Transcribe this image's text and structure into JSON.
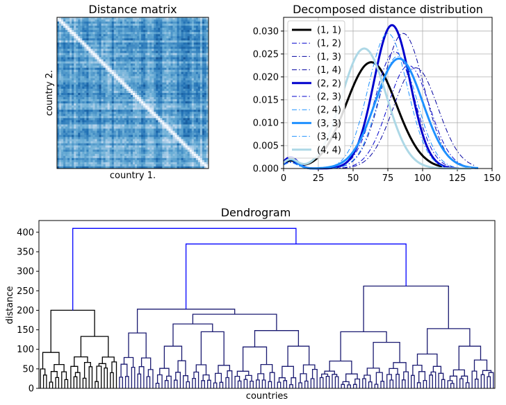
{
  "chart_data": [
    {
      "type": "heatmap",
      "title": "Distance matrix",
      "xlabel": "country 1.",
      "ylabel": "country 2.",
      "colormap": [
        "#f7fbff",
        "#c6dbef",
        "#6baed6",
        "#2171b5",
        "#08306b"
      ],
      "diagonal_color": "#f7fbff"
    },
    {
      "type": "line",
      "title": "Decomposed distance distribution",
      "xlim": [
        0,
        150
      ],
      "ylim": [
        0,
        0.033
      ],
      "xticks": [
        "0",
        "25",
        "50",
        "75",
        "100",
        "125",
        "150"
      ],
      "yticks": [
        "0.000",
        "0.005",
        "0.010",
        "0.015",
        "0.020",
        "0.025",
        "0.030"
      ],
      "grid": true,
      "legend_position": "top-left",
      "series": [
        {
          "name": "(1, 1)",
          "color": "#000000",
          "style": "solid",
          "width": 3,
          "peaks": [
            {
              "mu": 63,
              "sd": 18,
              "a": 0.0232
            },
            {
              "mu": 5,
              "sd": 5,
              "a": 0.0016
            }
          ],
          "range": [
            0,
            114
          ]
        },
        {
          "name": "(1, 2)",
          "color": "#0000cd",
          "style": "dashdot",
          "width": 1,
          "peaks": [
            {
              "mu": 80,
              "sd": 14,
              "a": 0.0255
            },
            {
              "mu": 5,
              "sd": 5,
              "a": 0.0015
            }
          ],
          "range": [
            0,
            125
          ]
        },
        {
          "name": "(1, 3)",
          "color": "#0000a0",
          "style": "dashdot",
          "width": 1,
          "peaks": [
            {
              "mu": 86,
              "sd": 15,
              "a": 0.0295
            },
            {
              "mu": 5,
              "sd": 5,
              "a": 0.0013
            }
          ],
          "range": [
            0,
            130
          ]
        },
        {
          "name": "(1, 4)",
          "color": "#0000a0",
          "style": "dashdot",
          "width": 1,
          "peaks": [
            {
              "mu": 95,
              "sd": 16,
              "a": 0.022
            },
            {
              "mu": 5,
              "sd": 5,
              "a": 0.0013
            }
          ],
          "range": [
            0,
            137
          ]
        },
        {
          "name": "(2, 2)",
          "color": "#0000cd",
          "style": "solid",
          "width": 3,
          "peaks": [
            {
              "mu": 78,
              "sd": 13,
              "a": 0.0313
            },
            {
              "mu": 5,
              "sd": 5,
              "a": 0.0025
            }
          ],
          "range": [
            0,
            126
          ]
        },
        {
          "name": "(2, 3)",
          "color": "#0000cd",
          "style": "dashdot",
          "width": 1,
          "peaks": [
            {
              "mu": 90,
              "sd": 15,
              "a": 0.0225
            },
            {
              "mu": 5,
              "sd": 5,
              "a": 0.0013
            }
          ],
          "range": [
            0,
            135
          ]
        },
        {
          "name": "(2, 4)",
          "color": "#1e90ff",
          "style": "dashdot",
          "width": 1,
          "peaks": [
            {
              "mu": 82,
              "sd": 14,
              "a": 0.0245
            },
            {
              "mu": 5,
              "sd": 5,
              "a": 0.0013
            }
          ],
          "range": [
            0,
            132
          ]
        },
        {
          "name": "(3, 3)",
          "color": "#1e90ff",
          "style": "solid",
          "width": 3,
          "peaks": [
            {
              "mu": 83,
              "sd": 17,
              "a": 0.024
            },
            {
              "mu": 5,
              "sd": 5,
              "a": 0.002
            }
          ],
          "range": [
            0,
            140
          ]
        },
        {
          "name": "(3, 4)",
          "color": "#1e90ff",
          "style": "dashdot",
          "width": 1,
          "peaks": [
            {
              "mu": 75,
              "sd": 14,
              "a": 0.0295
            },
            {
              "mu": 5,
              "sd": 5,
              "a": 0.0013
            }
          ],
          "range": [
            0,
            128
          ]
        },
        {
          "name": "(4, 4)",
          "color": "#add8e6",
          "style": "solid",
          "width": 3,
          "peaks": [
            {
              "mu": 58,
              "sd": 16,
              "a": 0.0262
            },
            {
              "mu": 5,
              "sd": 5,
              "a": 0.002
            }
          ],
          "range": [
            0,
            135
          ]
        }
      ]
    },
    {
      "type": "dendrogram",
      "title": "Dendrogram",
      "xlabel": "countries",
      "ylabel": "distance",
      "ylim": [
        0,
        430
      ],
      "yticks": [
        "0",
        "50",
        "100",
        "150",
        "200",
        "250",
        "300",
        "350",
        "400"
      ],
      "leaf_count": 150,
      "root_height": 410,
      "top_link_color": "#0000ff",
      "cluster_colors": [
        "#000000",
        "#191970"
      ],
      "clusters": [
        {
          "name": "left",
          "leaves": 26,
          "height": 200,
          "color": "#000000",
          "children": [
            {
              "leaves": 10,
              "height": 92,
              "children": [
                {
                  "leaves": 3,
                  "height": 60
                },
                {
                  "leaves": 7,
                  "height": 78
                }
              ]
            },
            {
              "leaves": 16,
              "height": 133,
              "children": [
                {
                  "leaves": 8,
                  "height": 96
                },
                {
                  "leaves": 8,
                  "height": 88
                }
              ]
            }
          ]
        },
        {
          "name": "right",
          "leaves": 124,
          "height": 370,
          "color": "#0000ff",
          "children": [
            {
              "leaves": 66,
              "height": 203,
              "color": "#191970",
              "children": [
                {
                  "leaves": 12,
                  "height": 142,
                  "children": [
                    {
                      "leaves": 6,
                      "height": 100
                    },
                    {
                      "leaves": 6,
                      "height": 96
                    }
                  ]
                },
                {
                  "leaves": 54,
                  "height": 190,
                  "children": [
                    {
                      "leaves": 26,
                      "height": 165,
                      "children": [
                        {
                          "leaves": 12,
                          "height": 108,
                          "children": [
                            {
                              "leaves": 6,
                              "height": 60
                            },
                            {
                              "leaves": 6,
                              "height": 78
                            }
                          ]
                        },
                        {
                          "leaves": 14,
                          "height": 145,
                          "children": [
                            {
                              "leaves": 7,
                              "height": 68
                            },
                            {
                              "leaves": 7,
                              "height": 72
                            }
                          ]
                        }
                      ]
                    },
                    {
                      "leaves": 28,
                      "height": 148,
                      "children": [
                        {
                          "leaves": 14,
                          "height": 106,
                          "children": [
                            {
                              "leaves": 7,
                              "height": 60
                            },
                            {
                              "leaves": 7,
                              "height": 64
                            }
                          ]
                        },
                        {
                          "leaves": 14,
                          "height": 108,
                          "children": [
                            {
                              "leaves": 7,
                              "height": 62
                            },
                            {
                              "leaves": 7,
                              "height": 66
                            }
                          ]
                        }
                      ]
                    }
                  ]
                }
              ]
            },
            {
              "leaves": 58,
              "height": 262,
              "color": "#191970",
              "children": [
                {
                  "leaves": 30,
                  "height": 145,
                  "children": [
                    {
                      "leaves": 14,
                      "height": 70,
                      "children": [
                        {
                          "leaves": 7,
                          "height": 55
                        },
                        {
                          "leaves": 7,
                          "height": 48
                        }
                      ]
                    },
                    {
                      "leaves": 16,
                      "height": 118,
                      "children": [
                        {
                          "leaves": 8,
                          "height": 65
                        },
                        {
                          "leaves": 8,
                          "height": 70
                        }
                      ]
                    }
                  ]
                },
                {
                  "leaves": 28,
                  "height": 153,
                  "children": [
                    {
                      "leaves": 12,
                      "height": 88,
                      "children": [
                        {
                          "leaves": 6,
                          "height": 70
                        },
                        {
                          "leaves": 6,
                          "height": 65
                        }
                      ]
                    },
                    {
                      "leaves": 16,
                      "height": 108,
                      "children": [
                        {
                          "leaves": 8,
                          "height": 70
                        },
                        {
                          "leaves": 8,
                          "height": 95
                        }
                      ]
                    }
                  ]
                }
              ]
            }
          ]
        }
      ]
    }
  ]
}
